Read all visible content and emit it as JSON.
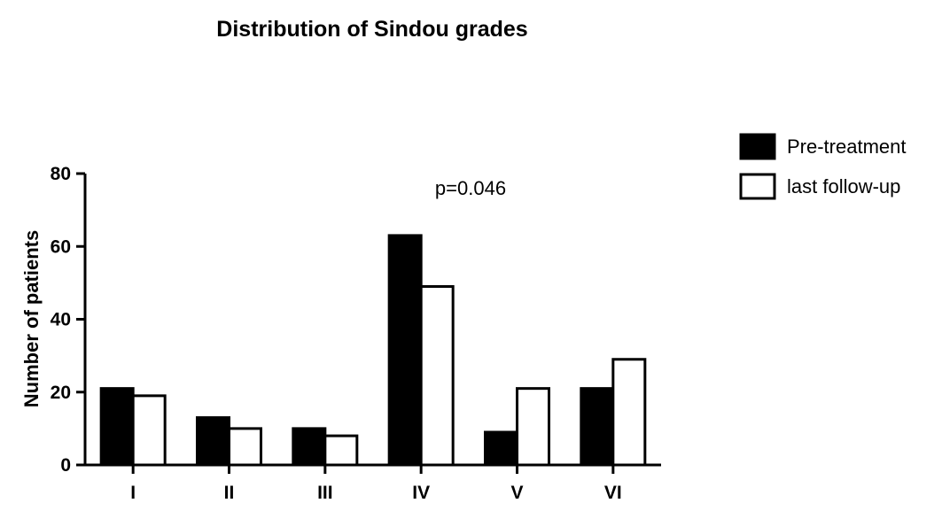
{
  "chart_data": {
    "type": "bar",
    "title": "Distribution of Sindou grades",
    "xlabel": "",
    "ylabel": "Number of patients",
    "categories": [
      "I",
      "II",
      "III",
      "IV",
      "V",
      "VI"
    ],
    "series": [
      {
        "name": "Pre-treatment",
        "values": [
          21,
          13,
          10,
          63,
          9,
          21
        ],
        "color": "#000000"
      },
      {
        "name": "last follow-up",
        "values": [
          19,
          10,
          8,
          49,
          21,
          29
        ],
        "color": "#ffffff"
      }
    ],
    "ylim": [
      0,
      80
    ],
    "yticks": [
      0,
      20,
      40,
      60,
      80
    ],
    "annotation": "p=0.046",
    "grid": false,
    "legend_position": "top-right"
  }
}
